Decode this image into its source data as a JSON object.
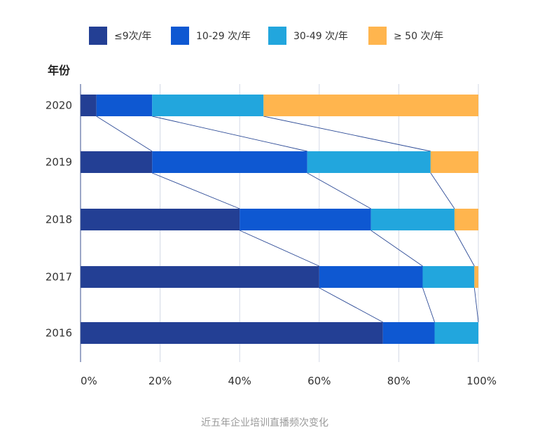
{
  "chart_data": {
    "type": "bar",
    "orientation": "horizontal",
    "stacked": true,
    "normalized": true,
    "caption": "近五年企业培训直播频次变化",
    "ylabel": "年份",
    "xlabel": "",
    "xlim": [
      0,
      100
    ],
    "x_ticks": [
      "0%",
      "20%",
      "40%",
      "60%",
      "80%",
      "100%"
    ],
    "x_tick_values": [
      0,
      20,
      40,
      60,
      80,
      100
    ],
    "grid": "vertical",
    "legend_position": "top",
    "connector_lines": true,
    "categories": [
      "2020",
      "2019",
      "2018",
      "2017",
      "2016"
    ],
    "series": [
      {
        "name": "≤9次/年",
        "color": "#233f94",
        "values": [
          4,
          18,
          40,
          60,
          76
        ]
      },
      {
        "name": "10-29 次/年",
        "color": "#0e58d2",
        "values": [
          14,
          39,
          33,
          26,
          13
        ]
      },
      {
        "name": "30-49 次/年",
        "color": "#22a6dd",
        "values": [
          28,
          31,
          21,
          13,
          11
        ]
      },
      {
        "name": "≥ 50 次/年",
        "color": "#ffb54e",
        "values": [
          54,
          12,
          6,
          1,
          0
        ]
      }
    ]
  }
}
